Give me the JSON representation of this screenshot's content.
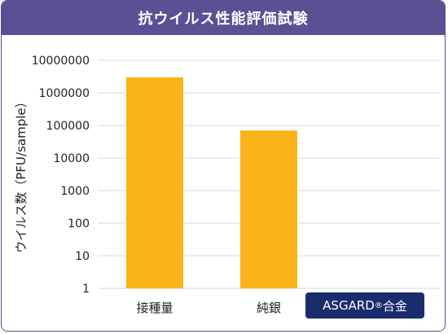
{
  "title": "抗ウイルス性能評価試験",
  "chart_data": {
    "type": "bar",
    "scale": "log",
    "ylabel": "ウイルス数（PFU/sample）",
    "ylim": [
      1,
      10000000
    ],
    "yticks": [
      "10000000",
      "1000000",
      "100000",
      "10000",
      "1000",
      "100",
      "10",
      "1"
    ],
    "categories": [
      "接種量",
      "純銀",
      "ASGARD®合金"
    ],
    "values": [
      3000000,
      70000,
      null
    ],
    "bar_color": "#fbb31a",
    "grid": true,
    "highlight_category": {
      "text": "ASGARD",
      "mark": "®",
      "suffix": "合金",
      "background": "#1b2c6c"
    }
  }
}
